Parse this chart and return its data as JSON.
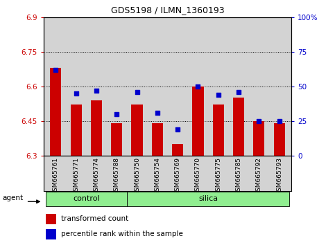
{
  "title": "GDS5198 / ILMN_1360193",
  "samples": [
    "GSM665761",
    "GSM665771",
    "GSM665774",
    "GSM665788",
    "GSM665750",
    "GSM665754",
    "GSM665769",
    "GSM665770",
    "GSM665775",
    "GSM665785",
    "GSM665792",
    "GSM665793"
  ],
  "groups": [
    "control",
    "control",
    "control",
    "control",
    "silica",
    "silica",
    "silica",
    "silica",
    "silica",
    "silica",
    "silica",
    "silica"
  ],
  "red_values": [
    6.68,
    6.52,
    6.54,
    6.44,
    6.52,
    6.44,
    6.35,
    6.6,
    6.52,
    6.55,
    6.45,
    6.44
  ],
  "blue_values": [
    62,
    45,
    47,
    30,
    46,
    31,
    19,
    50,
    44,
    46,
    25,
    25
  ],
  "ylim_left": [
    6.3,
    6.9
  ],
  "ylim_right": [
    0,
    100
  ],
  "yticks_left": [
    6.3,
    6.45,
    6.6,
    6.75,
    6.9
  ],
  "yticks_right": [
    0,
    25,
    50,
    75,
    100
  ],
  "yticklabels_left": [
    "6.3",
    "6.45",
    "6.6",
    "6.75",
    "6.9"
  ],
  "yticklabels_right": [
    "0",
    "25",
    "50",
    "75",
    "100%"
  ],
  "bar_color": "#cc0000",
  "dot_color": "#0000cc",
  "group_color": "#90ee90",
  "plot_bg": "#d3d3d3",
  "left_color": "#cc0000",
  "right_color": "#0000cc",
  "bar_width": 0.55,
  "grid_color": "black",
  "n_control": 4,
  "n_silica": 8
}
